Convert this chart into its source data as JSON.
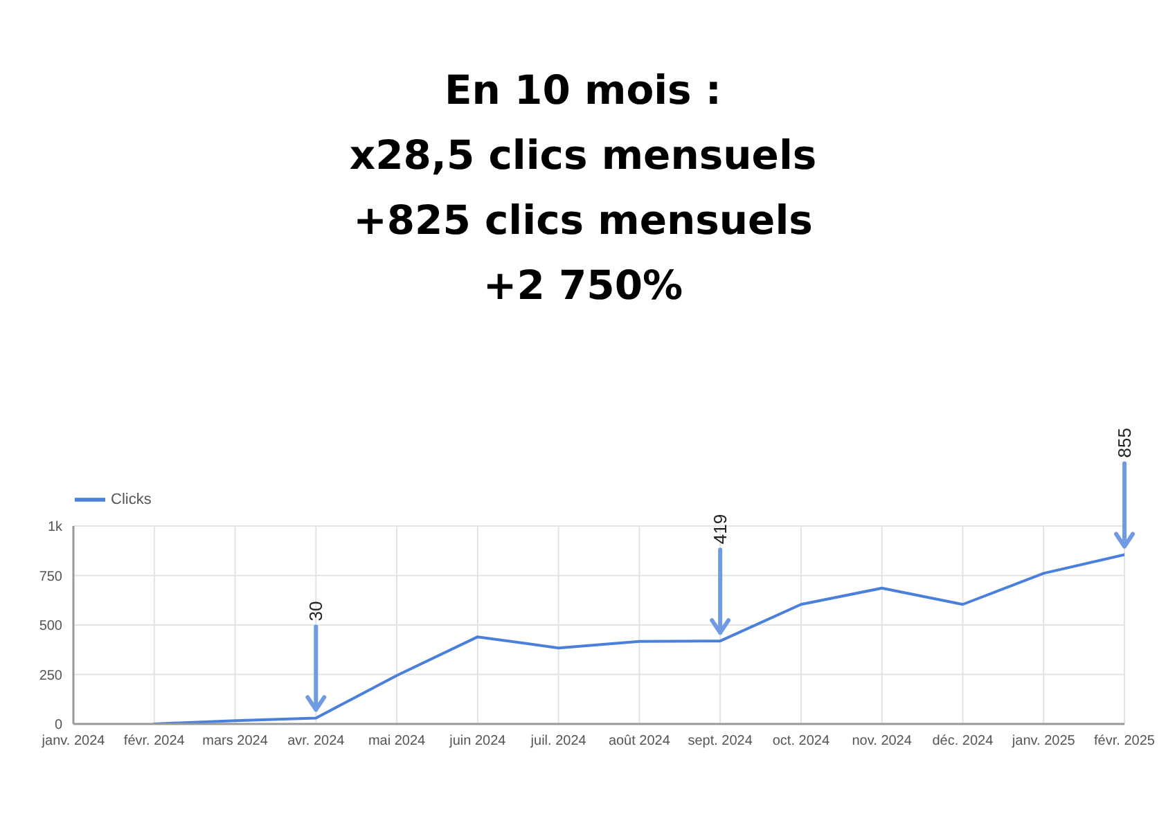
{
  "chart_data": {
    "type": "line",
    "title": "En 10 mois :\nx28,5 clics mensuels\n+825 clics mensuels\n+2 750%",
    "categories": [
      "janv. 2024",
      "févr. 2024",
      "mars 2024",
      "avr. 2024",
      "mai 2024",
      "juin 2024",
      "juil. 2024",
      "août 2024",
      "sept. 2024",
      "oct. 2024",
      "nov. 2024",
      "déc. 2024",
      "janv. 2025",
      "févr. 2025"
    ],
    "series": [
      {
        "name": "Clicks",
        "color": "#4a7fdb",
        "values": [
          null,
          0,
          17,
          30,
          245,
          440,
          384,
          417,
          419,
          604,
          686,
          604,
          761,
          855
        ]
      }
    ],
    "ylim": [
      0,
      1000
    ],
    "yticks": [
      0,
      250,
      500,
      750,
      {
        "value": 1000,
        "label": "1k"
      }
    ],
    "grid": true,
    "legend": "top left",
    "marker": "none",
    "line_style": "solid",
    "annotations": [
      {
        "text": "30",
        "x": "avr. 2024",
        "y": 30
      },
      {
        "text": "419",
        "x": "sept. 2024",
        "y": 419
      },
      {
        "text": "855",
        "x": "févr. 2025",
        "y": 855
      }
    ]
  }
}
